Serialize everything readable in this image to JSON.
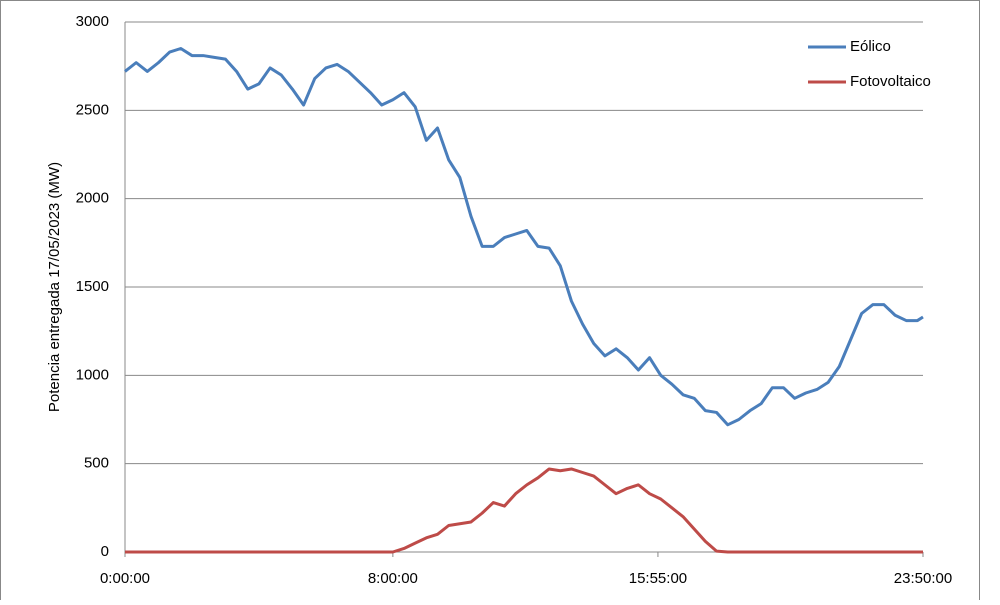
{
  "chart_data": {
    "type": "line",
    "y_label": "Potencia entregada 17/05/2023 (MW)",
    "x": [
      0,
      20,
      40,
      60,
      80,
      100,
      120,
      140,
      160,
      180,
      200,
      220,
      240,
      260,
      280,
      300,
      320,
      340,
      360,
      380,
      400,
      420,
      440,
      460,
      480,
      500,
      520,
      540,
      560,
      580,
      600,
      620,
      640,
      660,
      680,
      700,
      720,
      740,
      760,
      780,
      800,
      820,
      840,
      860,
      880,
      900,
      920,
      940,
      960,
      980,
      1000,
      1020,
      1040,
      1060,
      1080,
      1100,
      1120,
      1140,
      1160,
      1180,
      1200,
      1220,
      1240,
      1260,
      1280,
      1300,
      1320,
      1340,
      1360,
      1380,
      1400,
      1420,
      1430
    ],
    "xlim": [
      0,
      1430
    ],
    "xticks": [
      {
        "value": 0,
        "label": "0:00:00"
      },
      {
        "value": 480,
        "label": "8:00:00"
      },
      {
        "value": 955,
        "label": "15:55:00"
      },
      {
        "value": 1430,
        "label": "23:50:00"
      }
    ],
    "ylim": [
      0,
      3000
    ],
    "yticks": [
      0,
      500,
      1000,
      1500,
      2000,
      2500,
      3000
    ],
    "grid": true,
    "legend": "upper right",
    "series": [
      {
        "name": "Eólico",
        "color": "#4a7ebb",
        "values": [
          2720,
          2770,
          2720,
          2770,
          2830,
          2850,
          2810,
          2810,
          2800,
          2790,
          2720,
          2620,
          2650,
          2740,
          2700,
          2620,
          2530,
          2680,
          2740,
          2760,
          2720,
          2660,
          2600,
          2530,
          2560,
          2600,
          2520,
          2330,
          2400,
          2220,
          2120,
          1900,
          1730,
          1730,
          1780,
          1800,
          1820,
          1730,
          1720,
          1620,
          1420,
          1290,
          1180,
          1110,
          1150,
          1100,
          1030,
          1100,
          1000,
          950,
          890,
          870,
          800,
          790,
          720,
          750,
          800,
          840,
          930,
          930,
          870,
          900,
          920,
          960,
          1050,
          1200,
          1350,
          1400,
          1400,
          1340,
          1310,
          1310,
          1330
        ]
      },
      {
        "name": "Fotovoltaico",
        "color": "#be4b48",
        "values": [
          0,
          0,
          0,
          0,
          0,
          0,
          0,
          0,
          0,
          0,
          0,
          0,
          0,
          0,
          0,
          0,
          0,
          0,
          0,
          0,
          0,
          0,
          0,
          0,
          0,
          20,
          50,
          80,
          100,
          150,
          160,
          170,
          220,
          280,
          260,
          330,
          380,
          420,
          470,
          460,
          470,
          450,
          430,
          380,
          330,
          360,
          380,
          330,
          300,
          250,
          200,
          130,
          60,
          5,
          0,
          0,
          0,
          0,
          0,
          0,
          0,
          0,
          0,
          0,
          0,
          0,
          0,
          0,
          0,
          0,
          0,
          0,
          0
        ]
      }
    ]
  }
}
